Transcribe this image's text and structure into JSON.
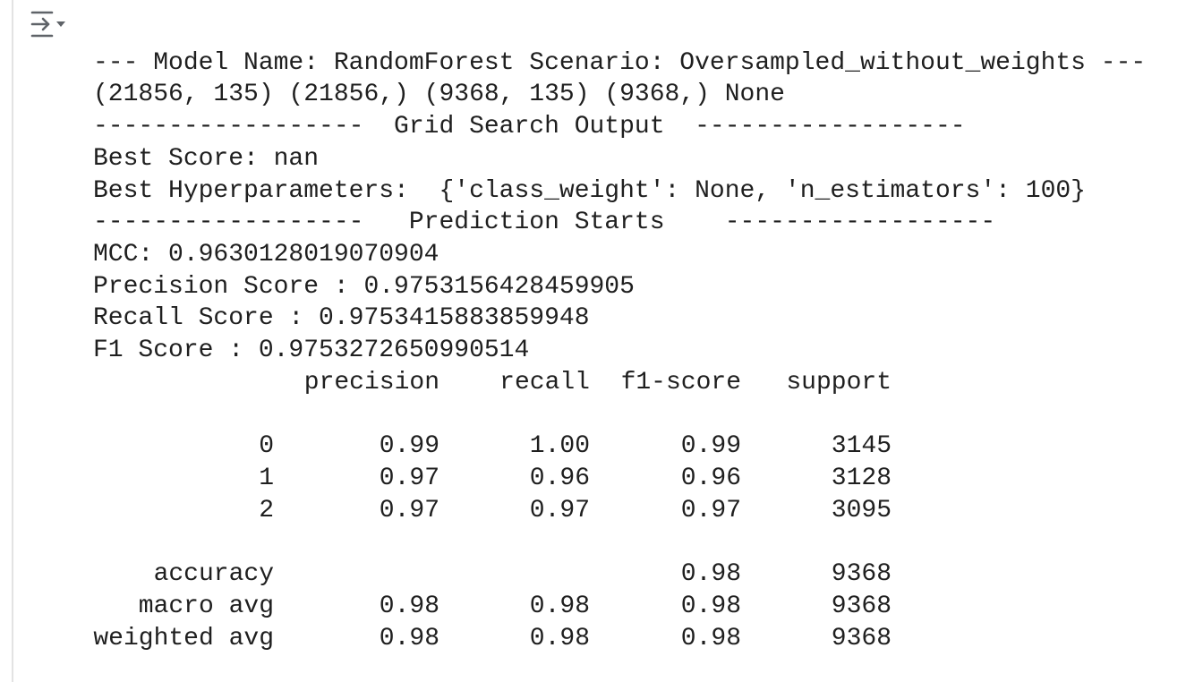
{
  "output": {
    "header": "--- Model Name: RandomForest Scenario: Oversampled_without_weights ---",
    "shapes": "(21856, 135) (21856,) (9368, 135) (9368,) None",
    "grid_search_banner": "------------------  Grid Search Output  ------------------",
    "best_score": "Best Score: nan",
    "best_hyperparameters": "Best Hyperparameters:  {'class_weight': None, 'n_estimators': 100}",
    "prediction_banner": "------------------   Prediction Starts    ------------------",
    "metrics": [
      "MCC: 0.9630128019070904",
      "Precision Score : 0.9753156428459905",
      "Recall Score : 0.9753415883859948",
      "F1 Score : 0.9753272650990514"
    ],
    "report": {
      "columns": [
        "precision",
        "recall",
        "f1-score",
        "support"
      ],
      "rows": [
        {
          "label": "0",
          "cells": [
            "0.99",
            "1.00",
            "0.99",
            "3145"
          ]
        },
        {
          "label": "1",
          "cells": [
            "0.97",
            "0.96",
            "0.96",
            "3128"
          ]
        },
        {
          "label": "2",
          "cells": [
            "0.97",
            "0.97",
            "0.97",
            "3095"
          ]
        },
        {
          "label": "accuracy",
          "cells": [
            null,
            null,
            "0.98",
            "9368"
          ]
        },
        {
          "label": "macro avg",
          "cells": [
            "0.98",
            "0.98",
            "0.98",
            "9368"
          ]
        },
        {
          "label": "weighted avg",
          "cells": [
            "0.98",
            "0.98",
            "0.98",
            "9368"
          ]
        }
      ]
    }
  }
}
